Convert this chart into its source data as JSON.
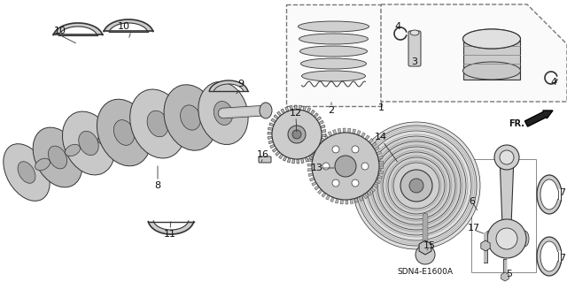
{
  "bg_color": "#ffffff",
  "fig_width": 6.4,
  "fig_height": 3.19,
  "dpi": 100,
  "diagram_ref": "SDN4-E1600A",
  "edge_color": "#333333",
  "light_gray": "#d8d8d8",
  "mid_gray": "#aaaaaa",
  "dark_gray": "#666666"
}
